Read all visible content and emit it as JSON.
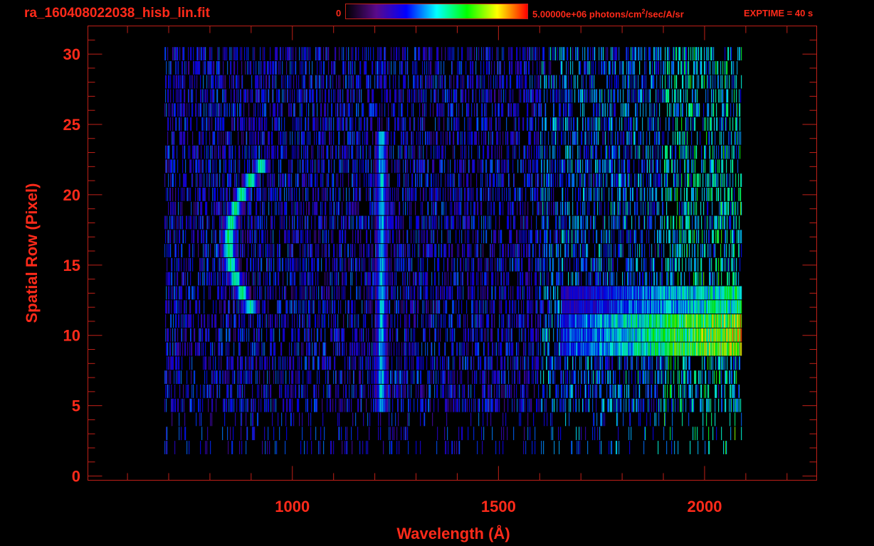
{
  "header": {
    "title": "ra_160408022038_hisb_lin.fit",
    "colorbar_min": "0",
    "colorbar_max_value": "5.00000e+06",
    "colorbar_unit_pre": " photons/cm",
    "colorbar_unit_sup": "2",
    "colorbar_unit_post": "/sec/A/sr",
    "exptime": "EXPTIME = 40 s"
  },
  "colors": {
    "axis": "#ff2a1a",
    "frame": "#c02018",
    "background": "#000000",
    "colormap": [
      "#000000",
      "#5a0a8a",
      "#0000ff",
      "#00ffff",
      "#00ff00",
      "#ffff00",
      "#ff0000"
    ]
  },
  "chart_data": {
    "type": "heatmap",
    "title": "ra_160408022038_hisb_lin.fit",
    "xlabel": "Wavelength (Å)",
    "ylabel": "Spatial Row (Pixel)",
    "xlim": [
      504,
      2272
    ],
    "ylim": [
      -0.3,
      32
    ],
    "xticks": [
      1000,
      1500,
      2000
    ],
    "xminor_step": 100,
    "yticks": [
      0,
      5,
      10,
      15,
      20,
      25,
      30
    ],
    "yminor_step": 1,
    "colorbar": {
      "min": 0,
      "max": 5000000,
      "unit": "photons/cm^2/sec/A/sr"
    },
    "data_extent": {
      "wavelength": [
        690,
        2090
      ],
      "rows": [
        2,
        30
      ]
    },
    "features": [
      {
        "name": "",
        "type": "curved line",
        "center_wavelength_min": 845,
        "rows": [
          12,
          22
        ],
        "peak_fraction": 0.6
      },
      {
        "name": "",
        "type": "line",
        "center_wavelength": 1216,
        "rows": [
          5,
          24
        ],
        "peak_fraction": 0.5
      },
      {
        "name": "",
        "type": "band",
        "wavelength": [
          1650,
          2075
        ],
        "rows": [
          8,
          13
        ],
        "peak_fraction": 0.8
      }
    ]
  }
}
